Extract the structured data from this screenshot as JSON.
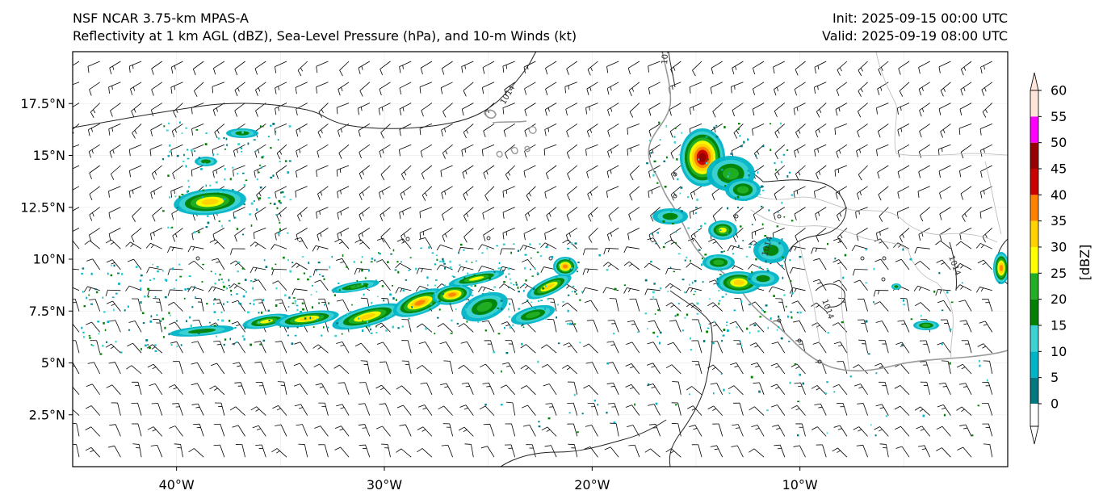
{
  "header": {
    "model_title": "NSF NCAR 3.75-km MPAS-A",
    "fields_title": "Reflectivity at 1 km AGL (dBZ), Sea-Level Pressure (hPa), and 10-m Winds (kt)",
    "init_label": "Init: 2025-09-15 00:00 UTC",
    "valid_label": "Valid: 2025-09-19 08:00 UTC"
  },
  "axes": {
    "lat_labels": [
      "17.5°N",
      "15°N",
      "12.5°N",
      "10°N",
      "7.5°N",
      "5°N",
      "2.5°N"
    ],
    "lat_values": [
      17.5,
      15,
      12.5,
      10,
      7.5,
      5,
      2.5
    ],
    "lon_labels": [
      "40°W",
      "30°W",
      "20°W",
      "10°W"
    ],
    "lon_values": [
      -40,
      -30,
      -20,
      -10
    ],
    "lon_range": [
      -45,
      0
    ],
    "lat_range": [
      0,
      20
    ]
  },
  "colorbar": {
    "label": "[dBZ]",
    "ticks": [
      "0",
      "5",
      "10",
      "15",
      "20",
      "25",
      "30",
      "35",
      "40",
      "45",
      "50",
      "55",
      "60"
    ],
    "colors": [
      "#00787f",
      "#00b4c8",
      "#3cd2d2",
      "#008200",
      "#23af23",
      "#ffff00",
      "#ffd200",
      "#ff8200",
      "#c80000",
      "#960000",
      "#ff00ff",
      "#ffe6d8"
    ]
  },
  "contours": {
    "labels": [
      "1014",
      "1010",
      "1014",
      "1014",
      "1014"
    ]
  }
}
